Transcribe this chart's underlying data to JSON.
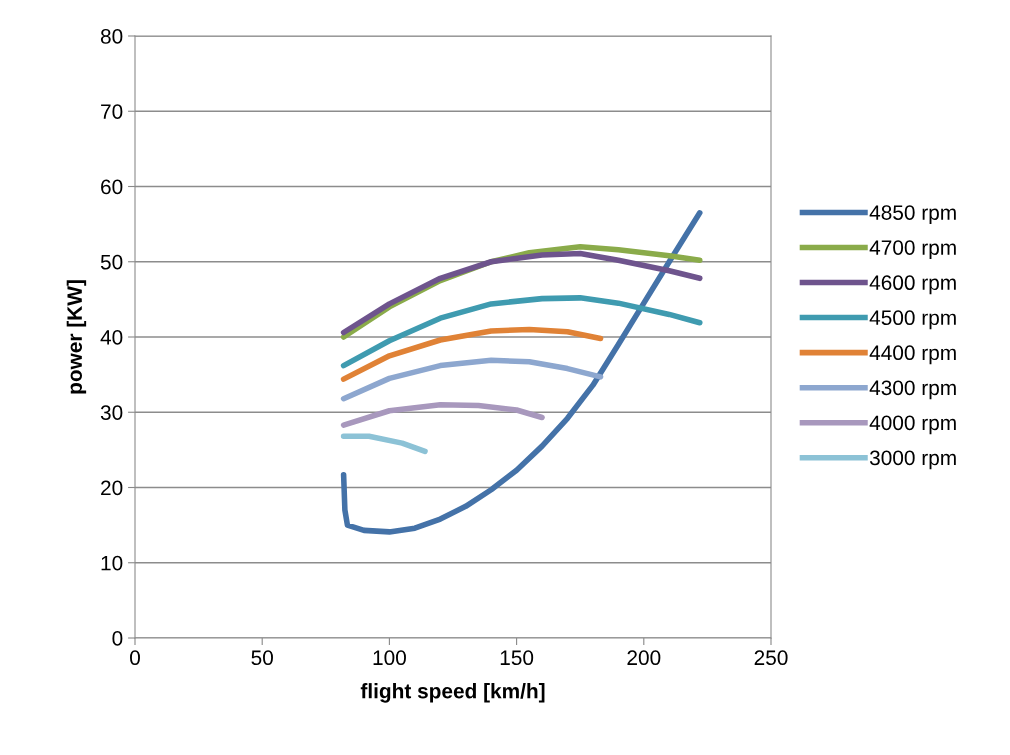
{
  "chart_data": {
    "type": "line",
    "xlabel": "flight speed [km/h]",
    "ylabel": "power [KW]",
    "xlim": [
      0,
      250
    ],
    "xticks": [
      0,
      50,
      100,
      150,
      200,
      250
    ],
    "ylim": [
      0,
      80
    ],
    "yticks": [
      0,
      10,
      20,
      30,
      40,
      50,
      60,
      70,
      80
    ],
    "grid": "y",
    "legend": "right",
    "marker": "none",
    "line_style": "solid",
    "series": [
      {
        "name": "4850 rpm",
        "color": "#4472a8",
        "x": [
          82,
          82.5,
          83.5,
          90,
          100,
          110,
          120,
          130,
          140,
          150,
          160,
          170,
          180,
          190,
          200,
          210,
          222
        ],
        "values": [
          21.7,
          17,
          15,
          14.3,
          14.1,
          14.6,
          15.8,
          17.5,
          19.7,
          22.3,
          25.5,
          29.2,
          33.6,
          39,
          44.5,
          50,
          56.5
        ]
      },
      {
        "name": "4700 rpm",
        "color": "#8aab4a",
        "x": [
          82,
          100,
          120,
          140,
          155,
          175,
          190,
          210,
          222
        ],
        "values": [
          40,
          44,
          47.5,
          50,
          51.2,
          52,
          51.6,
          50.8,
          50.2
        ]
      },
      {
        "name": "4600 rpm",
        "color": "#6e548d",
        "x": [
          82,
          100,
          120,
          140,
          160,
          175,
          190,
          210,
          222
        ],
        "values": [
          40.6,
          44.4,
          47.8,
          50,
          50.9,
          51.1,
          50.2,
          48.8,
          47.8
        ]
      },
      {
        "name": "4500 rpm",
        "color": "#3f9bb0",
        "x": [
          82,
          100,
          120,
          140,
          160,
          175,
          190,
          210,
          222
        ],
        "values": [
          36.2,
          39.5,
          42.5,
          44.4,
          45.1,
          45.2,
          44.5,
          43,
          41.9
        ]
      },
      {
        "name": "4400 rpm",
        "color": "#e08236",
        "x": [
          82,
          100,
          120,
          140,
          155,
          170,
          183
        ],
        "values": [
          34.4,
          37.5,
          39.6,
          40.8,
          41,
          40.7,
          39.8
        ]
      },
      {
        "name": "4300 rpm",
        "color": "#8da7cf",
        "x": [
          82,
          100,
          120,
          140,
          155,
          170,
          183
        ],
        "values": [
          31.8,
          34.5,
          36.2,
          36.9,
          36.7,
          35.8,
          34.7
        ]
      },
      {
        "name": "4000 rpm",
        "color": "#a898bd",
        "x": [
          82,
          100,
          120,
          135,
          150,
          160
        ],
        "values": [
          28.3,
          30.2,
          31,
          30.9,
          30.3,
          29.3
        ]
      },
      {
        "name": "3000 rpm",
        "color": "#8cc2d6",
        "x": [
          82,
          92,
          105,
          114
        ],
        "values": [
          26.8,
          26.8,
          25.9,
          24.8
        ]
      }
    ]
  }
}
